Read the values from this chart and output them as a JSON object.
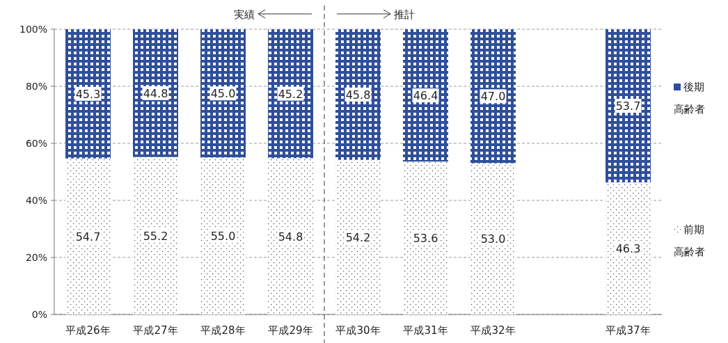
{
  "chart_data": {
    "type": "bar",
    "stacked": true,
    "categories": [
      "平成26年",
      "平成27年",
      "平成28年",
      "平成29年",
      "平成30年",
      "平成31年",
      "平成32年",
      null,
      "平成37年"
    ],
    "series": [
      {
        "name": "前期高齢者",
        "color": "#ffffff",
        "values": [
          54.7,
          55.2,
          55.0,
          54.8,
          54.2,
          53.6,
          53.0,
          null,
          46.3
        ],
        "value_labels": [
          "54.7",
          "55.2",
          "55.0",
          "54.8",
          "54.2",
          "53.6",
          "53.0",
          null,
          "46.3"
        ]
      },
      {
        "name": "後期高齢者",
        "color": "#2f4f9a",
        "values": [
          45.3,
          44.8,
          45.0,
          45.2,
          45.8,
          46.4,
          47.0,
          null,
          53.7
        ],
        "value_labels": [
          "45.3",
          "44.8",
          "45.0",
          "45.2",
          "45.8",
          "46.4",
          "47.0",
          null,
          "53.7"
        ]
      }
    ],
    "ylim": [
      0,
      100
    ],
    "yticks": [
      {
        "value": 0,
        "label": "0%"
      },
      {
        "value": 20,
        "label": "20%"
      },
      {
        "value": 40,
        "label": "40%"
      },
      {
        "value": 60,
        "label": "60%"
      },
      {
        "value": 80,
        "label": "80%"
      },
      {
        "value": 100,
        "label": "100%"
      }
    ],
    "grid": "y",
    "legend": "right",
    "annotations": [
      "実績",
      "推計"
    ]
  }
}
